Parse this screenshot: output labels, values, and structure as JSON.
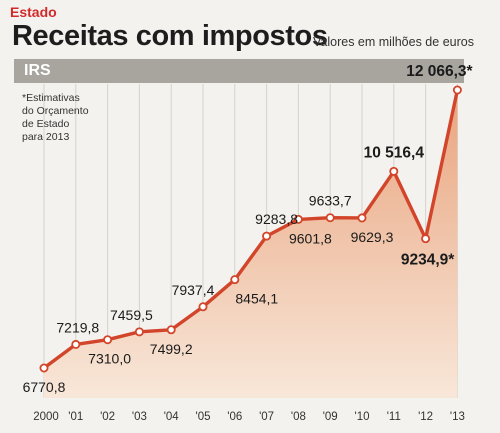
{
  "header": {
    "section": "Estado",
    "title": "Receitas com impostos",
    "subtitle": "Valores em milhões de euros"
  },
  "band_label": "IRS",
  "note_lines": [
    "*Estimativas",
    "do Orçamento",
    "de Estado",
    "para 2013"
  ],
  "colors": {
    "section": "#d12a2a",
    "line": "#d2452a",
    "area_top": "#e9a47e",
    "area_bottom": "#f8e7d9",
    "band": "#a8a49e"
  },
  "chart_data": {
    "type": "area",
    "title": "Receitas com impostos",
    "subtitle": "Valores em milhões de euros",
    "xlabel": "",
    "ylabel": "",
    "categories": [
      "2000",
      "'01",
      "'02",
      "'03",
      "'04",
      "'05",
      "'06",
      "'07",
      "'08",
      "'09",
      "'10",
      "'11",
      "'12",
      "'13"
    ],
    "series": [
      {
        "name": "IRS",
        "values": [
          6770.8,
          7219.8,
          7310.0,
          7459.5,
          7499.2,
          7937.4,
          8454.1,
          9283.8,
          9601.8,
          9633.7,
          9629.3,
          10516.4,
          9234.9,
          12066.3
        ]
      }
    ],
    "labels": [
      "6770,8",
      "7219,8",
      "7310,0",
      "7459,5",
      "7499,2",
      "7937,4",
      "8454,1",
      "9283,8",
      "9601,8",
      "9633,7",
      "9629,3",
      "10 516,4",
      "9234,9*",
      "12 066,3*"
    ],
    "estimated_years": [
      "'12",
      "'13"
    ],
    "grid": true,
    "legend": "none"
  }
}
